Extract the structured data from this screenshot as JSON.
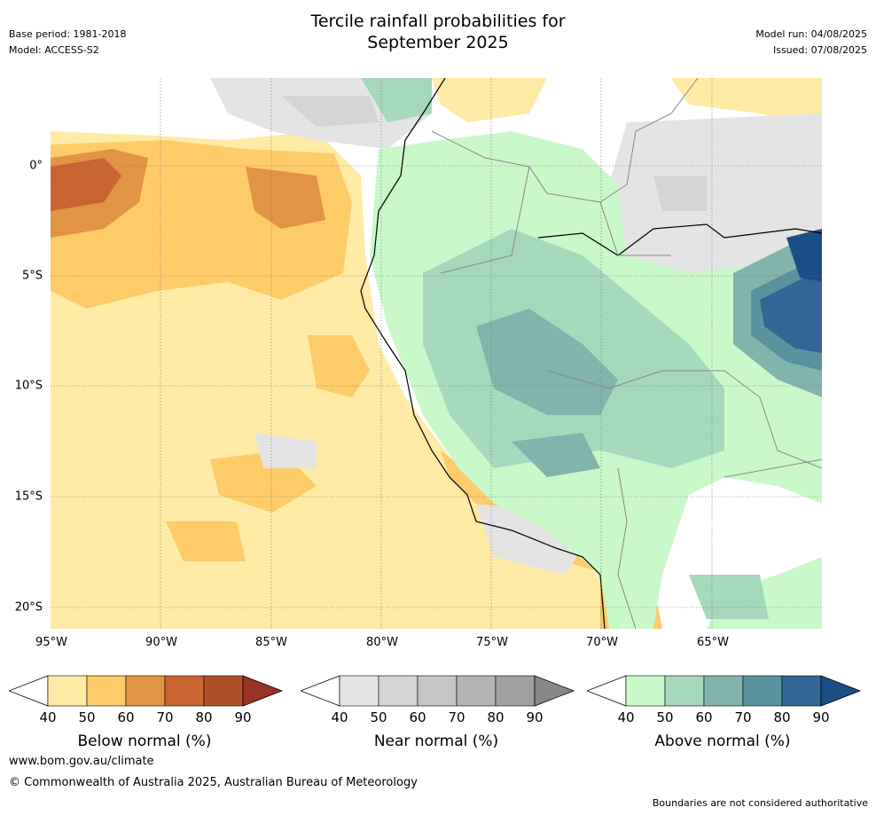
{
  "title_line1": "Tercile rainfall probabilities for",
  "title_line2": "September 2025",
  "base_period": "Base period: 1981-2018",
  "model": "Model: ACCESS-S2",
  "model_run": "Model run: 04/08/2025",
  "issued": "Issued: 07/08/2025",
  "x_ticks": [
    "95°W",
    "90°W",
    "85°W",
    "80°W",
    "75°W",
    "70°W",
    "65°W"
  ],
  "y_ticks": [
    "0°",
    "5°S",
    "10°S",
    "15°S",
    "20°S"
  ],
  "colorbars": [
    {
      "title": "Below normal (%)",
      "labels": [
        "40",
        "50",
        "60",
        "70",
        "80",
        "90"
      ],
      "colors": [
        "#ffeaa6",
        "#fdcb68",
        "#e09444",
        "#ca6430",
        "#b0502a",
        "#983424"
      ]
    },
    {
      "title": "Near normal (%)",
      "labels": [
        "40",
        "50",
        "60",
        "70",
        "80",
        "90"
      ],
      "colors": [
        "#e4e4e4",
        "#d4d4d4",
        "#c6c6c6",
        "#b4b4b4",
        "#a0a0a0",
        "#888888"
      ]
    },
    {
      "title": "Above normal (%)",
      "labels": [
        "40",
        "50",
        "60",
        "70",
        "80",
        "90"
      ],
      "colors": [
        "#c9f8c9",
        "#a6d8bc",
        "#80b4ac",
        "#5a92a0",
        "#336694",
        "#1a4f86"
      ]
    }
  ],
  "footer_url": "www.bom.gov.au/climate",
  "footer_copyright": "© Commonwealth of Australia 2025, Australian Bureau of Meteorology",
  "footer_note": "Boundaries are not considered authoritative"
}
